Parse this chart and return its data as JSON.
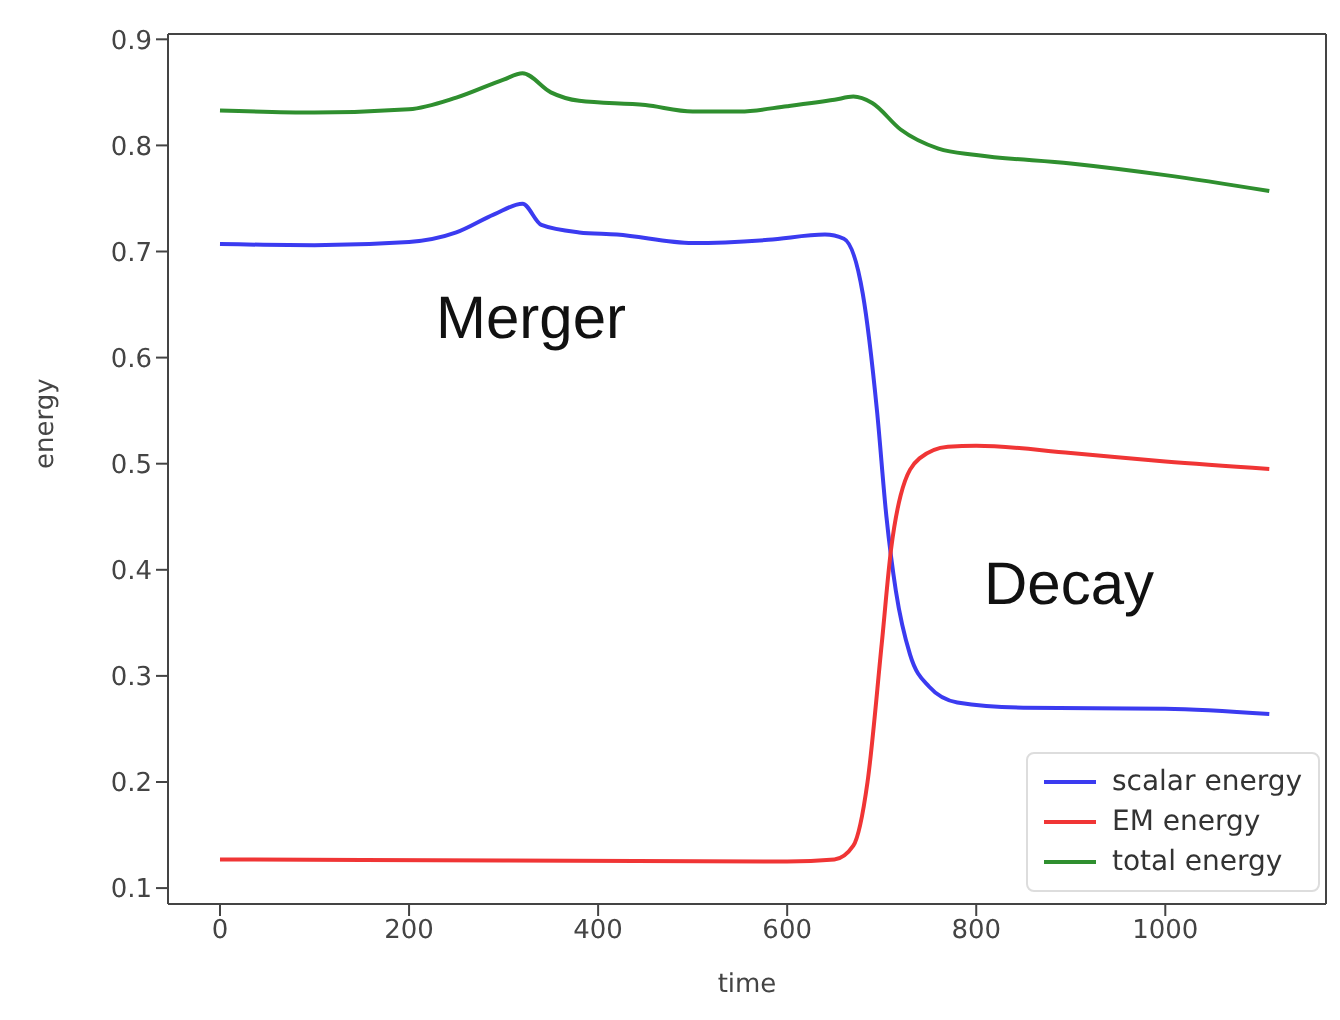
{
  "chart_data": {
    "type": "line",
    "xlabel": "time",
    "ylabel": "energy",
    "xlim": [
      -55,
      1170
    ],
    "ylim": [
      0.085,
      0.905
    ],
    "xticks": [
      0,
      200,
      400,
      600,
      800,
      1000
    ],
    "yticks": [
      0.1,
      0.2,
      0.3,
      0.4,
      0.5,
      0.6,
      0.7,
      0.8,
      0.9
    ],
    "grid": false,
    "legend": "bottom right",
    "marker": "none",
    "line_style": "solid",
    "annotations": [
      "Merger",
      "Decay"
    ],
    "series": [
      {
        "name": "scalar energy",
        "color": "#3b3bf0",
        "x": [
          0,
          100,
          200,
          250,
          290,
          320,
          340,
          380,
          420,
          500,
          580,
          640,
          660,
          680,
          695,
          705,
          715,
          730,
          750,
          780,
          850,
          1000,
          1110
        ],
        "values": [
          0.707,
          0.706,
          0.709,
          0.718,
          0.735,
          0.745,
          0.725,
          0.718,
          0.716,
          0.708,
          0.711,
          0.716,
          0.712,
          0.66,
          0.55,
          0.45,
          0.38,
          0.32,
          0.29,
          0.275,
          0.27,
          0.269,
          0.264
        ]
      },
      {
        "name": "EM energy",
        "color": "#f03535",
        "x": [
          0,
          300,
          600,
          650,
          670,
          685,
          700,
          710,
          720,
          740,
          770,
          800,
          900,
          1000,
          1110
        ],
        "values": [
          0.127,
          0.126,
          0.125,
          0.127,
          0.14,
          0.2,
          0.33,
          0.42,
          0.47,
          0.505,
          0.516,
          0.517,
          0.51,
          0.502,
          0.495
        ]
      },
      {
        "name": "total energy",
        "color": "#2f8f2f",
        "x": [
          0,
          100,
          200,
          250,
          300,
          320,
          350,
          380,
          450,
          500,
          550,
          600,
          650,
          670,
          690,
          720,
          760,
          800,
          900,
          1000,
          1110
        ],
        "values": [
          0.833,
          0.831,
          0.834,
          0.845,
          0.862,
          0.868,
          0.85,
          0.842,
          0.838,
          0.832,
          0.832,
          0.837,
          0.843,
          0.846,
          0.84,
          0.815,
          0.797,
          0.791,
          0.783,
          0.772,
          0.757
        ]
      }
    ]
  }
}
